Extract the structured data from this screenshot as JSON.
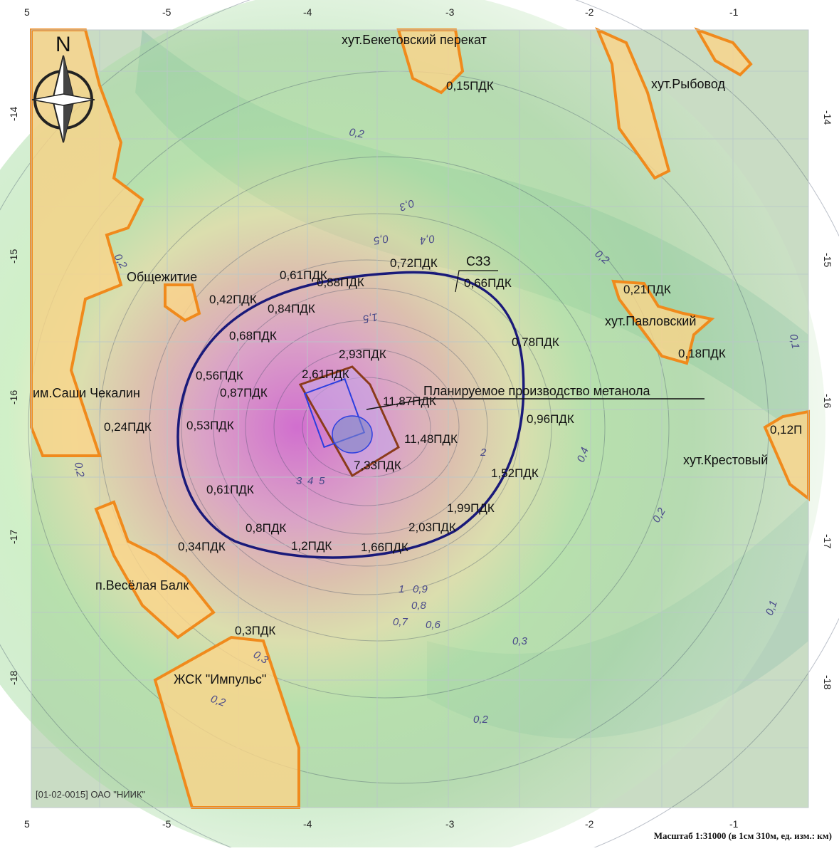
{
  "map": {
    "x_ticks": [
      "-5",
      "-4",
      "-3",
      "-2",
      "-1"
    ],
    "y_ticks": [
      "-14",
      "-15",
      "-16",
      "-17",
      "-18"
    ],
    "partial_tick_left": "5",
    "north_label": "N",
    "scale_text": "Масштаб 1:31000 (в 1см 310м, ед. изм.: км)",
    "watermark": "[01-02-0015] ОАО \"НИИК\"",
    "places": [
      {
        "id": "beketovsky",
        "text": "хут.Бекетовский перекат"
      },
      {
        "id": "rybovod",
        "text": "хут.Рыбовод"
      },
      {
        "id": "obshchezhitie",
        "text": "Общежитие"
      },
      {
        "id": "pavlovsky",
        "text": "хут.Павловский"
      },
      {
        "id": "chekalin",
        "text": "им.Саши Чекалин"
      },
      {
        "id": "krestovy",
        "text": "хут.Крестовый"
      },
      {
        "id": "veselaya",
        "text": "п.Весёлая Балк"
      },
      {
        "id": "impuls",
        "text": "ЖСК \"Импульс\""
      }
    ],
    "annotations": {
      "methanol": "Планируемое производство метанола",
      "szz": "СЗЗ"
    },
    "concentrations": [
      "0,15ПДК",
      "0,72ПДК",
      "0,66ПДК",
      "0,61ПДК",
      "0,88ПДК",
      "0,42ПДК",
      "0,84ПДК",
      "0,21ПДК",
      "0,68ПДК",
      "0,78ПДК",
      "0,18ПДК",
      "2,93ПДК",
      "2,61ПДК",
      "0,56ПДК",
      "11,87ПДК",
      "0,87ПДК",
      "0,96ПДК",
      "0,24ПДК",
      "0,53ПДК",
      "11,48ПДК",
      "0,12П",
      "7,33ПДК",
      "1,52ПДК",
      "0,61ПДК",
      "1,99ПДК",
      "0,8ПДК",
      "2,03ПДК",
      "0,34ПДК",
      "1,2ПДК",
      "1,66ПДК",
      "0,3ПДК"
    ],
    "isolines": [
      "0,2",
      "0,3",
      "0,4",
      "0,5",
      "0,2",
      "1,5",
      "0,2",
      "0,1",
      "0,2",
      "0,3",
      "0,2",
      "0,2",
      "0,1",
      "0,3",
      "0,2",
      "1",
      "0,9",
      "0,8",
      "0,7",
      "0,6",
      "2",
      "3",
      "4",
      "5",
      "0,4"
    ],
    "colors": {
      "zone_orange": "#f08a1c",
      "zone_fill": "#fbd48a",
      "szz_line": "#1a1a7a",
      "hotspot": "#d67ad6",
      "grid": "#b9c7c9"
    }
  }
}
